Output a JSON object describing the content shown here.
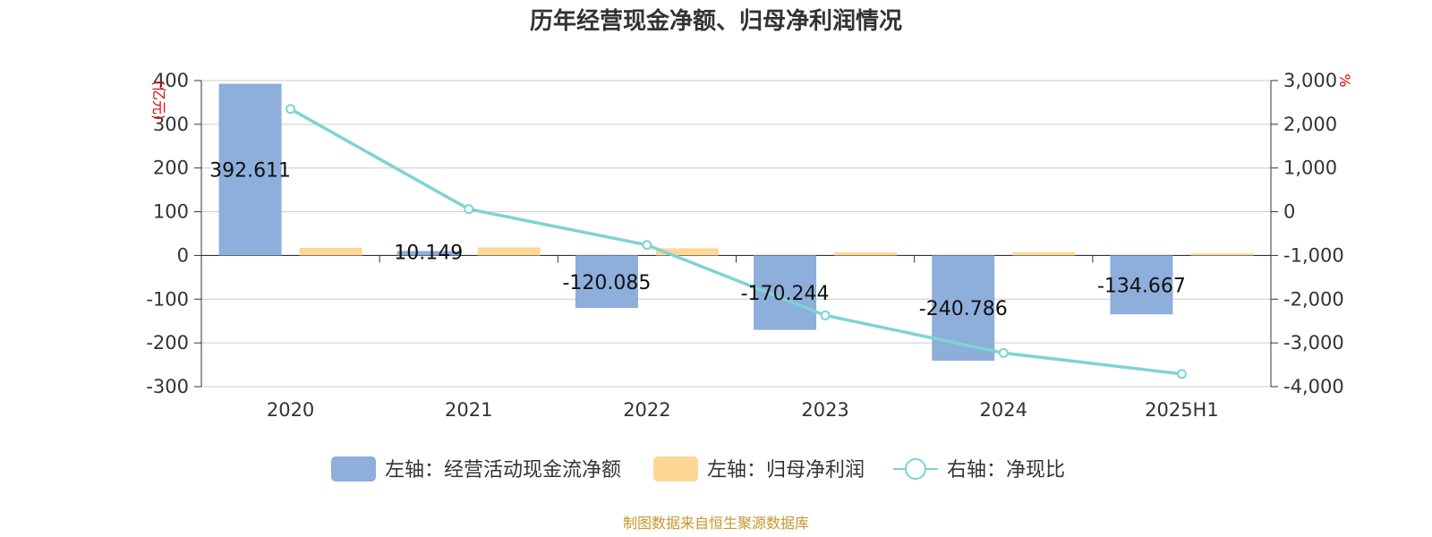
{
  "chart_data": {
    "type": "bar",
    "title": "历年经营现金净额、归母净利润情况",
    "categories": [
      "2020",
      "2021",
      "2022",
      "2023",
      "2024",
      "2025H1"
    ],
    "series": [
      {
        "name": "左轴：经营活动现金流净额",
        "axis": "left",
        "type": "bar",
        "color": "#8eaedb",
        "values": [
          392.611,
          10.149,
          -120.085,
          -170.244,
          -240.786,
          -134.667
        ],
        "labels": [
          "392.611",
          "10.149",
          "-120.085",
          "-170.244",
          "-240.786",
          "-134.667"
        ]
      },
      {
        "name": "左轴：归母净利润",
        "axis": "left",
        "type": "bar",
        "color": "#fdd796",
        "values": [
          17.5,
          18.5,
          16.5,
          7.0,
          7.5,
          4.5
        ]
      },
      {
        "name": "右轴：净现比",
        "axis": "right",
        "type": "line",
        "color": "#7fd3d3",
        "values": [
          2350,
          60,
          -760,
          -2370,
          -3230,
          -3710
        ]
      }
    ],
    "y_left": {
      "unit": "(亿元)",
      "min": -300,
      "max": 400,
      "ticks": [
        400,
        300,
        200,
        100,
        0,
        -100,
        -200,
        -300
      ],
      "tick_labels": [
        "400",
        "300",
        "200",
        "100",
        "0",
        "-100",
        "-200",
        "-300"
      ]
    },
    "y_right": {
      "unit": "%",
      "min": -4000,
      "max": 3000,
      "ticks": [
        3000,
        2000,
        1000,
        0,
        -1000,
        -2000,
        -3000,
        -4000
      ],
      "tick_labels": [
        "3,000",
        "2,000",
        "1,000",
        "0",
        "-1,000",
        "-2,000",
        "-3,000",
        "-4,000"
      ]
    },
    "grid": true,
    "legend_position": "bottom",
    "source": "制图数据来自恒生聚源数据库"
  }
}
